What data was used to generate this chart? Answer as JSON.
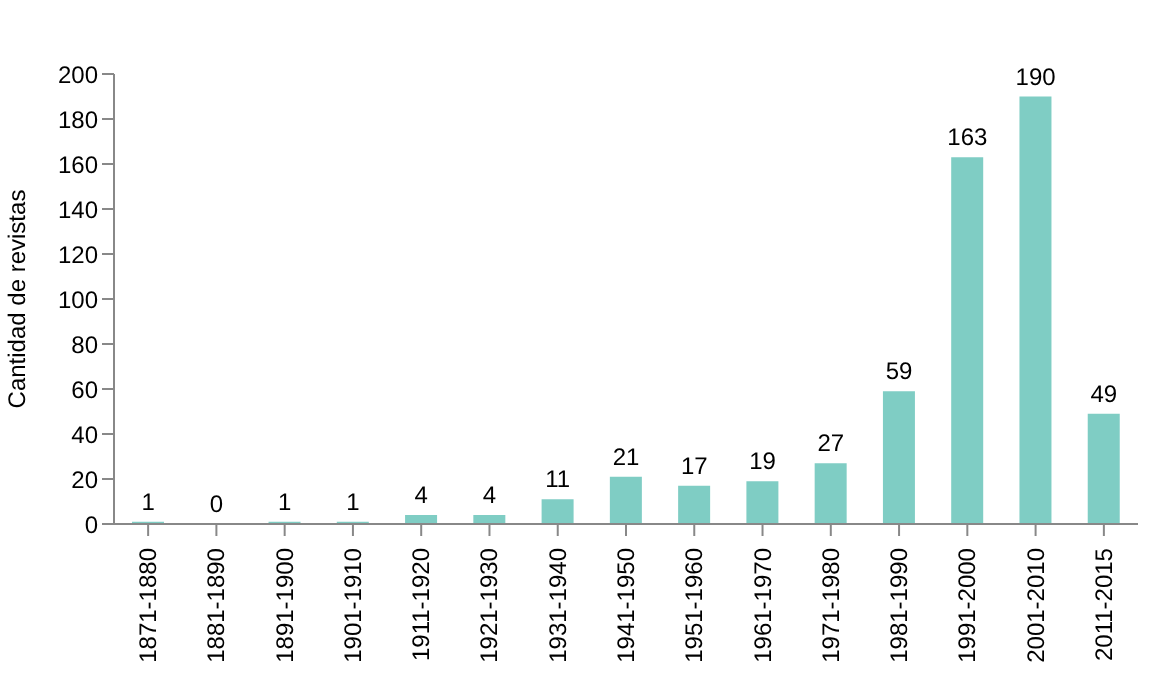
{
  "chart_data": {
    "type": "bar",
    "ylabel": "Cantidad de revistas",
    "categories": [
      "1871-1880",
      "1881-1890",
      "1891-1900",
      "1901-1910",
      "1911-1920",
      "1921-1930",
      "1931-1940",
      "1941-1950",
      "1951-1960",
      "1961-1970",
      "1971-1980",
      "1981-1990",
      "1991-2000",
      "2001-2010",
      "2011-2015"
    ],
    "values": [
      1,
      0,
      1,
      1,
      4,
      4,
      11,
      21,
      17,
      19,
      27,
      59,
      163,
      190,
      49
    ],
    "color": "#7fcdc4",
    "ylim": [
      0,
      200
    ],
    "yticks": [
      0,
      20,
      40,
      60,
      80,
      100,
      120,
      140,
      160,
      180,
      200
    ],
    "grid": false,
    "data_labels": true
  }
}
